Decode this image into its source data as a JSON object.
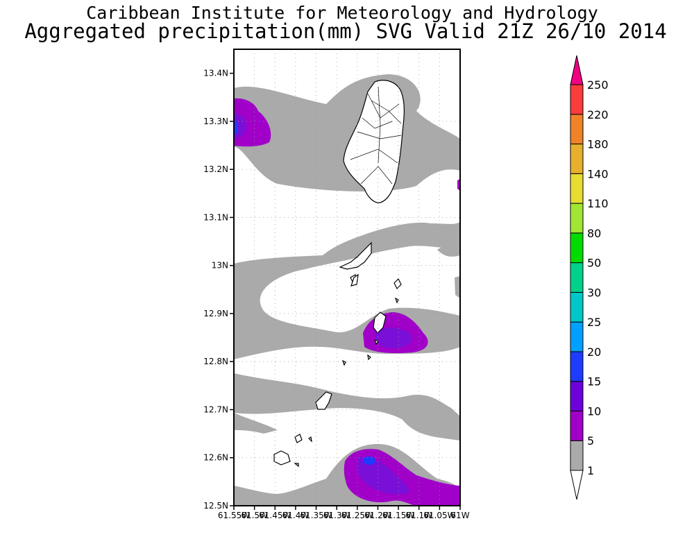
{
  "header": {
    "institute": "Caribbean Institute for Meteorology and Hydrology",
    "title": "Aggregated precipitation(mm) SVG Valid 21Z 26/10 2014"
  },
  "map": {
    "lat_labels": [
      "13.4N",
      "13.3N",
      "13.2N",
      "13.1N",
      "13N",
      "12.9N",
      "12.8N",
      "12.7N",
      "12.6N",
      "12.5N"
    ],
    "lon_labels": [
      "61.55W",
      "61.5W",
      "61.45W",
      "61.4W",
      "61.35W",
      "61.3W",
      "61.25W",
      "61.2W",
      "61.15W",
      "61.1W",
      "61.05W",
      "61W"
    ],
    "lat_range": [
      12.5,
      13.45
    ],
    "lon_range": [
      -61.55,
      -61.0
    ],
    "grid": true
  },
  "colorbar": {
    "levels": [
      "1",
      "5",
      "10",
      "15",
      "20",
      "25",
      "30",
      "50",
      "80",
      "110",
      "140",
      "180",
      "220",
      "250"
    ],
    "colors": [
      "#aaaaaa",
      "#a000c8",
      "#6e00dc",
      "#1e3cff",
      "#00a0ff",
      "#00c8c8",
      "#00d28c",
      "#00dc00",
      "#a0e632",
      "#e6dc32",
      "#e6af2d",
      "#f08228",
      "#fa3c3c",
      "#f00082"
    ],
    "style": {
      "grey": "#aaaaaa",
      "purple": "#a000c8",
      "violet": "#7a10d8",
      "blue": "#1e3cff",
      "land": "#ffffff",
      "coast": "#000000"
    }
  }
}
